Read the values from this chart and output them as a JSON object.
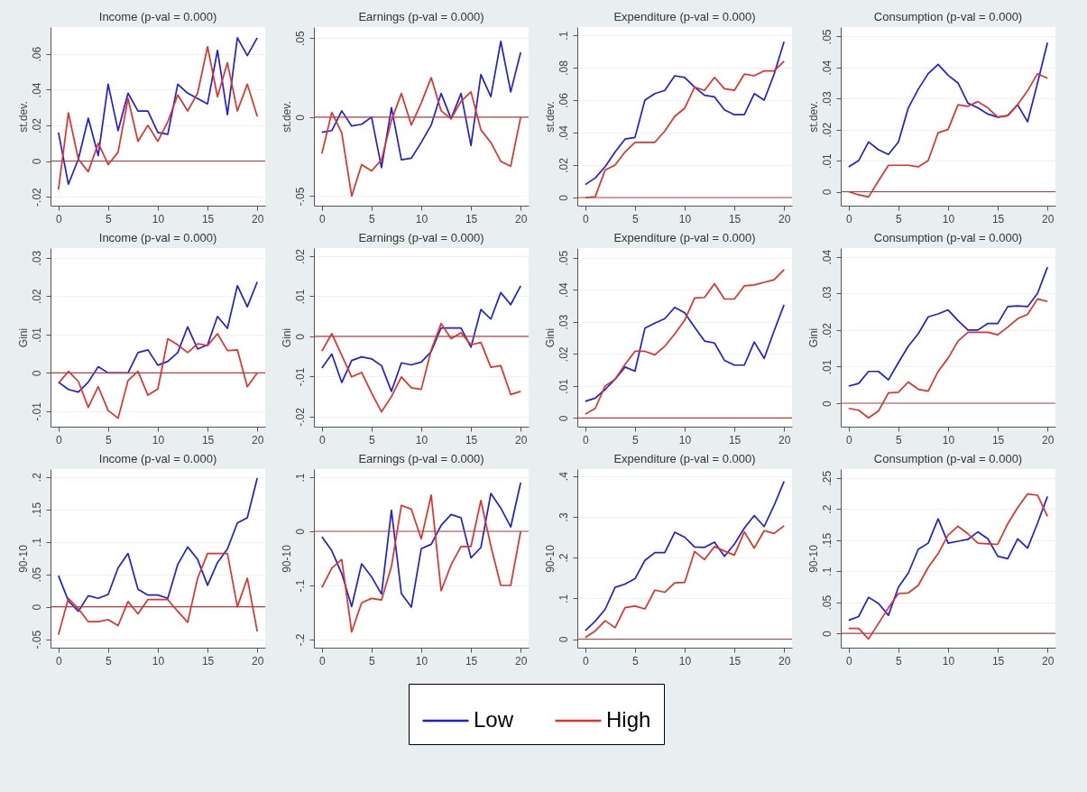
{
  "chart_data": [
    {
      "type": "line",
      "title": "Income (p-val = 0.000)",
      "ylabel": "st.dev.",
      "x": [
        0,
        1,
        2,
        3,
        4,
        5,
        6,
        7,
        8,
        9,
        10,
        11,
        12,
        13,
        14,
        15,
        16,
        17,
        18,
        19,
        20
      ],
      "xlim": [
        -0.8,
        20.8
      ],
      "xticks": [
        0,
        5,
        10,
        15,
        20
      ],
      "ylim": [
        -0.025,
        0.075
      ],
      "yticks": [
        {
          "value": -0.02,
          "label": "-.02"
        },
        {
          "value": 0,
          "label": "0"
        },
        {
          "value": 0.02,
          "label": ".02"
        },
        {
          "value": 0.04,
          "label": ".04"
        },
        {
          "value": 0.06,
          "label": ".06"
        }
      ],
      "grid": "y",
      "legend": "bottom",
      "ref_lines": [
        {
          "axis": "y",
          "value": 0,
          "color": "#b5413f"
        }
      ],
      "series": [
        {
          "name": "Low",
          "color": "#1f1fdc",
          "values": [
            0.016,
            -0.013,
            0.001,
            0.024,
            0.003,
            0.043,
            0.017,
            0.038,
            0.028,
            0.028,
            0.016,
            0.015,
            0.043,
            0.038,
            0.035,
            0.032,
            0.062,
            0.026,
            0.069,
            0.059,
            0.069
          ]
        },
        {
          "name": "High",
          "color": "#e5302a",
          "values": [
            -0.016,
            0.027,
            0.001,
            -0.006,
            0.01,
            -0.002,
            0.005,
            0.035,
            0.011,
            0.02,
            0.011,
            0.022,
            0.037,
            0.028,
            0.038,
            0.064,
            0.036,
            0.055,
            0.028,
            0.043,
            0.025
          ]
        }
      ]
    },
    {
      "type": "line",
      "title": "Earnings (p-val = 0.000)",
      "ylabel": "st.dev.",
      "x": [
        0,
        1,
        2,
        3,
        4,
        5,
        6,
        7,
        8,
        9,
        10,
        11,
        12,
        13,
        14,
        15,
        16,
        17,
        18,
        19,
        20
      ],
      "xlim": [
        -0.8,
        20.8
      ],
      "xticks": [
        0,
        5,
        10,
        15,
        20
      ],
      "ylim": [
        -0.056,
        0.057
      ],
      "yticks": [
        {
          "value": -0.05,
          "label": "-.05"
        },
        {
          "value": 0,
          "label": "0"
        },
        {
          "value": 0.05,
          "label": ".05"
        }
      ],
      "grid": "y",
      "legend": "bottom",
      "ref_lines": [
        {
          "axis": "y",
          "value": 0,
          "color": "#b5413f"
        }
      ],
      "series": [
        {
          "name": "Low",
          "color": "#1f1fdc",
          "values": [
            -0.0096,
            -0.0085,
            0.004,
            -0.0056,
            -0.0045,
            0,
            -0.032,
            0.006,
            -0.027,
            -0.026,
            -0.016,
            -0.005,
            0.015,
            -0.001,
            0.015,
            -0.018,
            0.027,
            0.013,
            0.048,
            0.016,
            0.041
          ]
        },
        {
          "name": "High",
          "color": "#e5302a",
          "values": [
            -0.023,
            0.003,
            -0.01,
            -0.05,
            -0.03,
            -0.034,
            -0.027,
            -0.002,
            0.015,
            -0.005,
            0.009,
            0.025,
            0.004,
            -0.001,
            0.01,
            0.016,
            -0.008,
            -0.016,
            -0.028,
            -0.031,
            0
          ]
        }
      ]
    },
    {
      "type": "line",
      "title": "Expenditure (p-val = 0.000)",
      "ylabel": "st.dev.",
      "x": [
        0,
        1,
        2,
        3,
        4,
        5,
        6,
        7,
        8,
        9,
        10,
        11,
        12,
        13,
        14,
        15,
        16,
        17,
        18,
        19,
        20
      ],
      "xlim": [
        -0.8,
        20.8
      ],
      "xticks": [
        0,
        5,
        10,
        15,
        20
      ],
      "ylim": [
        -0.005,
        0.105
      ],
      "yticks": [
        {
          "value": 0,
          "label": "0"
        },
        {
          "value": 0.02,
          "label": ".02"
        },
        {
          "value": 0.04,
          "label": ".04"
        },
        {
          "value": 0.06,
          "label": ".06"
        },
        {
          "value": 0.08,
          "label": ".08"
        },
        {
          "value": 0.1,
          "label": ".1"
        }
      ],
      "grid": "y",
      "legend": "bottom",
      "ref_lines": [
        {
          "axis": "y",
          "value": 0,
          "color": "#b5413f"
        }
      ],
      "series": [
        {
          "name": "Low",
          "color": "#1f1fdc",
          "values": [
            0.008,
            0.012,
            0.019,
            0.028,
            0.036,
            0.037,
            0.06,
            0.064,
            0.066,
            0.075,
            0.074,
            0.068,
            0.063,
            0.062,
            0.054,
            0.051,
            0.051,
            0.064,
            0.06,
            0.076,
            0.096
          ]
        },
        {
          "name": "High",
          "color": "#e5302a",
          "values": [
            0,
            0.0005,
            0.017,
            0.02,
            0.028,
            0.034,
            0.034,
            0.034,
            0.041,
            0.05,
            0.055,
            0.068,
            0.066,
            0.074,
            0.067,
            0.066,
            0.076,
            0.075,
            0.078,
            0.078,
            0.084
          ]
        }
      ]
    },
    {
      "type": "line",
      "title": "Consumption (p-val = 0.000)",
      "ylabel": "st.dev.",
      "x": [
        0,
        1,
        2,
        3,
        4,
        5,
        6,
        7,
        8,
        9,
        10,
        11,
        12,
        13,
        14,
        15,
        16,
        17,
        18,
        19,
        20
      ],
      "xlim": [
        -0.8,
        20.8
      ],
      "xticks": [
        0,
        5,
        10,
        15,
        20
      ],
      "ylim": [
        -0.0045,
        0.053
      ],
      "yticks": [
        {
          "value": 0,
          "label": "0"
        },
        {
          "value": 0.01,
          "label": ".01"
        },
        {
          "value": 0.02,
          "label": ".02"
        },
        {
          "value": 0.03,
          "label": ".03"
        },
        {
          "value": 0.04,
          "label": ".04"
        },
        {
          "value": 0.05,
          "label": ".05"
        }
      ],
      "grid": "y",
      "legend": "bottom",
      "ref_lines": [
        {
          "axis": "y",
          "value": 0,
          "color": "#b5413f"
        }
      ],
      "series": [
        {
          "name": "Low",
          "color": "#1f1fdc",
          "values": [
            0.008,
            0.01,
            0.016,
            0.0135,
            0.012,
            0.016,
            0.027,
            0.033,
            0.038,
            0.041,
            0.0375,
            0.035,
            0.0285,
            0.027,
            0.025,
            0.024,
            0.0245,
            0.028,
            0.0225,
            0.035,
            0.048
          ]
        },
        {
          "name": "High",
          "color": "#e5302a",
          "values": [
            0,
            -0.001,
            -0.0017,
            0.0035,
            0.0085,
            0.0085,
            0.0085,
            0.008,
            0.01,
            0.019,
            0.02,
            0.028,
            0.0275,
            0.029,
            0.027,
            0.024,
            0.0245,
            0.028,
            0.0325,
            0.038,
            0.0365
          ]
        }
      ]
    },
    {
      "type": "line",
      "title": "Income (p-val = 0.000)",
      "ylabel": "Gini",
      "x": [
        0,
        1,
        2,
        3,
        4,
        5,
        6,
        7,
        8,
        9,
        10,
        11,
        12,
        13,
        14,
        15,
        16,
        17,
        18,
        19,
        20
      ],
      "xlim": [
        -0.8,
        20.8
      ],
      "xticks": [
        0,
        5,
        10,
        15,
        20
      ],
      "ylim": [
        -0.014,
        0.0325
      ],
      "yticks": [
        {
          "value": -0.01,
          "label": "-.01"
        },
        {
          "value": 0,
          "label": "0"
        },
        {
          "value": 0.01,
          "label": ".01"
        },
        {
          "value": 0.02,
          "label": ".02"
        },
        {
          "value": 0.03,
          "label": ".03"
        }
      ],
      "grid": "y",
      "legend": "bottom",
      "ref_lines": [
        {
          "axis": "y",
          "value": 0,
          "color": "#b5413f"
        }
      ],
      "series": [
        {
          "name": "Low",
          "color": "#1f1fdc",
          "values": [
            -0.0024,
            -0.0043,
            -0.005,
            -0.0024,
            0.0016,
            0,
            0,
            0,
            0.0053,
            0.006,
            0.002,
            0.003,
            0.0053,
            0.012,
            0.0062,
            0.0073,
            0.0147,
            0.0116,
            0.0227,
            0.0172,
            0.0237
          ]
        },
        {
          "name": "High",
          "color": "#e5302a",
          "values": [
            -0.0027,
            0.0004,
            -0.0022,
            -0.009,
            -0.0036,
            -0.0098,
            -0.0118,
            -0.002,
            0.0004,
            -0.0058,
            -0.0042,
            0.0089,
            0.0073,
            0.0053,
            0.0076,
            0.0071,
            0.0102,
            0.0058,
            0.006,
            -0.0036,
            0
          ]
        }
      ]
    },
    {
      "type": "line",
      "title": "Earnings (p-val = 0.000)",
      "ylabel": "Gini",
      "x": [
        0,
        1,
        2,
        3,
        4,
        5,
        6,
        7,
        8,
        9,
        10,
        11,
        12,
        13,
        14,
        15,
        16,
        17,
        18,
        19,
        20
      ],
      "xlim": [
        -0.8,
        20.8
      ],
      "xticks": [
        0,
        5,
        10,
        15,
        20
      ],
      "ylim": [
        -0.0225,
        0.022
      ],
      "yticks": [
        {
          "value": -0.02,
          "label": "-.02"
        },
        {
          "value": -0.01,
          "label": "-.01"
        },
        {
          "value": 0,
          "label": "0"
        },
        {
          "value": 0.01,
          "label": ".01"
        },
        {
          "value": 0.02,
          "label": ".02"
        }
      ],
      "grid": "y",
      "legend": "bottom",
      "ref_lines": [
        {
          "axis": "y",
          "value": 0,
          "color": "#b5413f"
        }
      ],
      "series": [
        {
          "name": "Low",
          "color": "#1f1fdc",
          "values": [
            -0.0079,
            -0.0044,
            -0.0115,
            -0.006,
            -0.0051,
            -0.0056,
            -0.0073,
            -0.0137,
            -0.0066,
            -0.0071,
            -0.0064,
            -0.0038,
            0.0021,
            0.0021,
            0.0021,
            -0.0027,
            0.0067,
            0.0043,
            0.0109,
            0.0079,
            0.0126
          ]
        },
        {
          "name": "High",
          "color": "#e5302a",
          "values": [
            -0.0037,
            0.0007,
            -0.0047,
            -0.0101,
            -0.009,
            -0.0141,
            -0.0188,
            -0.015,
            -0.0101,
            -0.0128,
            -0.0132,
            -0.0034,
            0.0032,
            -0.0006,
            0.0009,
            -0.0021,
            -0.0015,
            -0.0077,
            -0.0073,
            -0.0145,
            -0.0137
          ]
        }
      ]
    },
    {
      "type": "line",
      "title": "Expenditure (p-val = 0.000)",
      "ylabel": "Gini",
      "x": [
        0,
        1,
        2,
        3,
        4,
        5,
        6,
        7,
        8,
        9,
        10,
        11,
        12,
        13,
        14,
        15,
        16,
        17,
        18,
        19,
        20
      ],
      "xlim": [
        -0.8,
        20.8
      ],
      "xticks": [
        0,
        5,
        10,
        15,
        20
      ],
      "ylim": [
        -0.0027,
        0.053
      ],
      "yticks": [
        {
          "value": 0,
          "label": "0"
        },
        {
          "value": 0.01,
          "label": ".01"
        },
        {
          "value": 0.02,
          "label": ".02"
        },
        {
          "value": 0.03,
          "label": ".03"
        },
        {
          "value": 0.04,
          "label": ".04"
        },
        {
          "value": 0.05,
          "label": ".05"
        }
      ],
      "grid": "y",
      "legend": "bottom",
      "ref_lines": [
        {
          "axis": "y",
          "value": 0,
          "color": "#b5413f"
        }
      ],
      "series": [
        {
          "name": "Low",
          "color": "#1f1fdc",
          "values": [
            0.0052,
            0.0062,
            0.0089,
            0.0121,
            0.0159,
            0.0146,
            0.028,
            0.0296,
            0.031,
            0.0345,
            0.0328,
            0.0283,
            0.024,
            0.0234,
            0.018,
            0.0165,
            0.0165,
            0.0237,
            0.0186,
            0.0272,
            0.0353
          ]
        },
        {
          "name": "High",
          "color": "#e5302a",
          "values": [
            0.0012,
            0.003,
            0.01,
            0.0121,
            0.0167,
            0.0208,
            0.0208,
            0.0197,
            0.0224,
            0.0262,
            0.0305,
            0.0374,
            0.0376,
            0.0419,
            0.0371,
            0.0371,
            0.0412,
            0.0415,
            0.0423,
            0.0431,
            0.0463
          ]
        }
      ]
    },
    {
      "type": "line",
      "title": "Consumption (p-val = 0.000)",
      "ylabel": "Gini",
      "x": [
        0,
        1,
        2,
        3,
        4,
        5,
        6,
        7,
        8,
        9,
        10,
        11,
        12,
        13,
        14,
        15,
        16,
        17,
        18,
        19,
        20
      ],
      "xlim": [
        -0.8,
        20.8
      ],
      "xticks": [
        0,
        5,
        10,
        15,
        20
      ],
      "ylim": [
        -0.0064,
        0.0424
      ],
      "yticks": [
        {
          "value": 0,
          "label": "0"
        },
        {
          "value": 0.01,
          "label": ".01"
        },
        {
          "value": 0.02,
          "label": ".02"
        },
        {
          "value": 0.03,
          "label": ".03"
        },
        {
          "value": 0.04,
          "label": ".04"
        }
      ],
      "grid": "y",
      "legend": "bottom",
      "ref_lines": [
        {
          "axis": "y",
          "value": 0,
          "color": "#b5413f"
        }
      ],
      "series": [
        {
          "name": "Low",
          "color": "#1f1fdc",
          "values": [
            0.0047,
            0.0054,
            0.0087,
            0.0087,
            0.0064,
            0.0111,
            0.0156,
            0.019,
            0.0236,
            0.0244,
            0.0255,
            0.0226,
            0.02,
            0.02,
            0.0218,
            0.0218,
            0.0264,
            0.0266,
            0.0264,
            0.03,
            0.0372
          ]
        },
        {
          "name": "High",
          "color": "#e5302a",
          "values": [
            -0.0014,
            -0.0019,
            -0.004,
            -0.0021,
            0.0028,
            0.003,
            0.0058,
            0.0038,
            0.0033,
            0.0087,
            0.0123,
            0.017,
            0.0194,
            0.0194,
            0.0194,
            0.0187,
            0.0208,
            0.0231,
            0.0243,
            0.0285,
            0.0278
          ]
        }
      ]
    },
    {
      "type": "line",
      "title": "Income (p-val = 0.000)",
      "ylabel": "90-10",
      "x": [
        0,
        1,
        2,
        3,
        4,
        5,
        6,
        7,
        8,
        9,
        10,
        11,
        12,
        13,
        14,
        15,
        16,
        17,
        18,
        19,
        20
      ],
      "xlim": [
        -0.8,
        20.8
      ],
      "xticks": [
        0,
        5,
        10,
        15,
        20
      ],
      "ylim": [
        -0.063,
        0.212
      ],
      "yticks": [
        {
          "value": -0.05,
          "label": "-.05"
        },
        {
          "value": 0,
          "label": "0"
        },
        {
          "value": 0.05,
          "label": ".05"
        },
        {
          "value": 0.1,
          "label": ".1"
        },
        {
          "value": 0.15,
          "label": ".15"
        },
        {
          "value": 0.2,
          "label": ".2"
        }
      ],
      "grid": "y",
      "legend": "bottom",
      "ref_lines": [
        {
          "axis": "y",
          "value": 0,
          "color": "#b5413f"
        }
      ],
      "series": [
        {
          "name": "Low",
          "color": "#1f1fdc",
          "values": [
            0.048,
            0.009,
            -0.007,
            0.017,
            0.013,
            0.019,
            0.06,
            0.082,
            0.027,
            0.018,
            0.018,
            0.013,
            0.065,
            0.092,
            0.073,
            0.033,
            0.068,
            0.089,
            0.129,
            0.137,
            0.198
          ]
        },
        {
          "name": "High",
          "color": "#e5302a",
          "values": [
            -0.043,
            0.013,
            -0.003,
            -0.023,
            -0.023,
            -0.02,
            -0.029,
            0.008,
            -0.011,
            0.011,
            0.011,
            0.011,
            -0.007,
            -0.024,
            0.044,
            0.082,
            0.082,
            0.082,
            0,
            0.044,
            -0.038
          ]
        }
      ]
    },
    {
      "type": "line",
      "title": "Earnings (p-val = 0.000)",
      "ylabel": "90-10",
      "x": [
        0,
        1,
        2,
        3,
        4,
        5,
        6,
        7,
        8,
        9,
        10,
        11,
        12,
        13,
        14,
        15,
        16,
        17,
        18,
        19,
        20
      ],
      "xlim": [
        -0.8,
        20.8
      ],
      "xticks": [
        0,
        5,
        10,
        15,
        20
      ],
      "ylim": [
        -0.215,
        0.115
      ],
      "yticks": [
        {
          "value": -0.2,
          "label": "-.2"
        },
        {
          "value": -0.1,
          "label": "-.1"
        },
        {
          "value": 0,
          "label": "0"
        },
        {
          "value": 0.1,
          "label": ".1"
        }
      ],
      "grid": "y",
      "legend": "bottom",
      "ref_lines": [
        {
          "axis": "y",
          "value": 0,
          "color": "#b5413f"
        }
      ],
      "series": [
        {
          "name": "Low",
          "color": "#1f1fdc",
          "values": [
            -0.01,
            -0.036,
            -0.078,
            -0.139,
            -0.06,
            -0.084,
            -0.116,
            0.039,
            -0.115,
            -0.14,
            -0.032,
            -0.024,
            0.011,
            0.031,
            0.025,
            -0.049,
            -0.03,
            0.07,
            0.043,
            0.008,
            0.09
          ]
        },
        {
          "name": "High",
          "color": "#e5302a",
          "values": [
            -0.104,
            -0.068,
            -0.052,
            -0.186,
            -0.132,
            -0.124,
            -0.127,
            -0.065,
            0.048,
            0.041,
            -0.014,
            0.067,
            -0.11,
            -0.062,
            -0.028,
            -0.028,
            0.057,
            -0.027,
            -0.1,
            -0.1,
            0
          ]
        }
      ]
    },
    {
      "type": "line",
      "title": "Expenditure (p-val = 0.000)",
      "ylabel": "90-10",
      "x": [
        0,
        1,
        2,
        3,
        4,
        5,
        6,
        7,
        8,
        9,
        10,
        11,
        12,
        13,
        14,
        15,
        16,
        17,
        18,
        19,
        20
      ],
      "xlim": [
        -0.8,
        20.8
      ],
      "xticks": [
        0,
        5,
        10,
        15,
        20
      ],
      "ylim": [
        -0.021,
        0.417
      ],
      "yticks": [
        {
          "value": 0,
          "label": "0"
        },
        {
          "value": 0.1,
          "label": ".1"
        },
        {
          "value": 0.2,
          "label": ".2"
        },
        {
          "value": 0.3,
          "label": ".3"
        },
        {
          "value": 0.4,
          "label": ".4"
        }
      ],
      "grid": "y",
      "legend": "bottom",
      "ref_lines": [
        {
          "axis": "y",
          "value": 0,
          "color": "#b5413f"
        }
      ],
      "series": [
        {
          "name": "Low",
          "color": "#1f1fdc",
          "values": [
            0.021,
            0.044,
            0.073,
            0.127,
            0.135,
            0.148,
            0.193,
            0.212,
            0.212,
            0.262,
            0.25,
            0.226,
            0.225,
            0.238,
            0.203,
            0.233,
            0.272,
            0.303,
            0.276,
            0.328,
            0.387
          ]
        },
        {
          "name": "High",
          "color": "#e5302a",
          "values": [
            0.004,
            0.02,
            0.045,
            0.028,
            0.077,
            0.081,
            0.074,
            0.12,
            0.115,
            0.138,
            0.139,
            0.215,
            0.195,
            0.227,
            0.216,
            0.206,
            0.263,
            0.223,
            0.266,
            0.259,
            0.278
          ]
        }
      ]
    },
    {
      "type": "line",
      "title": "Consumption (p-val = 0.000)",
      "ylabel": "90-10",
      "x": [
        0,
        1,
        2,
        3,
        4,
        5,
        6,
        7,
        8,
        9,
        10,
        11,
        12,
        13,
        14,
        15,
        16,
        17,
        18,
        19,
        20
      ],
      "xlim": [
        -0.8,
        20.8
      ],
      "xticks": [
        0,
        5,
        10,
        15,
        20
      ],
      "ylim": [
        -0.023,
        0.264
      ],
      "yticks": [
        {
          "value": 0,
          "label": "0"
        },
        {
          "value": 0.05,
          "label": ".05"
        },
        {
          "value": 0.1,
          "label": ".1"
        },
        {
          "value": 0.15,
          "label": ".15"
        },
        {
          "value": 0.2,
          "label": ".2"
        },
        {
          "value": 0.25,
          "label": ".25"
        }
      ],
      "grid": "y",
      "legend": "bottom",
      "ref_lines": [
        {
          "axis": "y",
          "value": 0,
          "color": "#b5413f"
        }
      ],
      "series": [
        {
          "name": "Low",
          "color": "#1f1fdc",
          "values": [
            0.021,
            0.027,
            0.058,
            0.048,
            0.029,
            0.074,
            0.097,
            0.135,
            0.145,
            0.184,
            0.145,
            0.148,
            0.151,
            0.163,
            0.152,
            0.124,
            0.12,
            0.152,
            0.137,
            0.177,
            0.22
          ]
        },
        {
          "name": "High",
          "color": "#e5302a",
          "values": [
            0.008,
            0.008,
            -0.009,
            0.016,
            0.041,
            0.064,
            0.065,
            0.077,
            0.106,
            0.128,
            0.158,
            0.172,
            0.16,
            0.145,
            0.144,
            0.143,
            0.176,
            0.202,
            0.224,
            0.222,
            0.188
          ]
        }
      ]
    }
  ]
}
